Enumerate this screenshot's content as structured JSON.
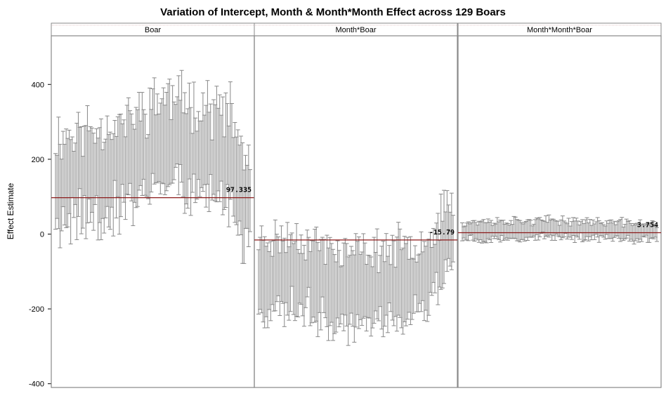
{
  "chart_data": {
    "type": "error-bar panel chart",
    "title": "Variation of Intercept, Month & Month*Month Effect across 129 Boars",
    "ylabel": "Effect Estimate",
    "ylim": [
      -410,
      530
    ],
    "yticks": [
      -400,
      -200,
      0,
      200,
      400
    ],
    "grid": false,
    "n_per_panel": 129,
    "colors": {
      "bar": "#888888",
      "reference": "#8b1a1a",
      "panel_border": "#888888"
    },
    "panels": [
      {
        "label": "Boar",
        "reference_value": 97.335,
        "reference_label": "97.335",
        "center_trend": [
          [
            0,
            140
          ],
          [
            0.15,
            160
          ],
          [
            0.35,
            180
          ],
          [
            0.55,
            250
          ],
          [
            0.75,
            230
          ],
          [
            0.9,
            200
          ],
          [
            1,
            45
          ]
        ],
        "half_width": 120,
        "spread": 50,
        "seed": 11
      },
      {
        "label": "Month*Boar",
        "reference_value": -15.79,
        "reference_label": "-15.79",
        "center_trend": [
          [
            0,
            -110
          ],
          [
            0.2,
            -100
          ],
          [
            0.45,
            -145
          ],
          [
            0.7,
            -130
          ],
          [
            0.88,
            -100
          ],
          [
            1,
            5
          ]
        ],
        "half_width": 95,
        "spread": 35,
        "seed": 23
      },
      {
        "label": "Month*Month*Boar",
        "reference_value": 3.754,
        "reference_label": "3.754",
        "center_trend": [
          [
            0,
            10
          ],
          [
            0.5,
            15
          ],
          [
            1,
            5
          ]
        ],
        "half_width": 22,
        "spread": 8,
        "seed": 37
      }
    ]
  }
}
